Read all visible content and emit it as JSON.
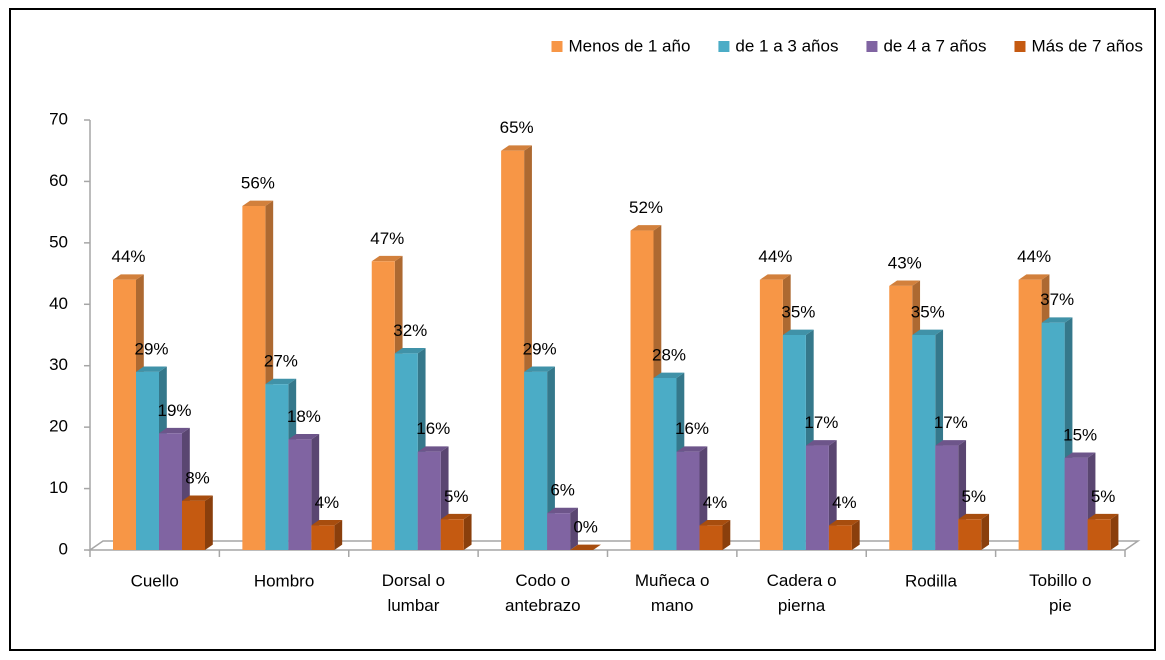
{
  "chart_data": {
    "type": "bar3d",
    "categories": [
      "Cuello",
      "Hombro",
      "Dorsal o lumbar",
      "Codo o antebrazo",
      "Muñeca o mano",
      "Cadera o pierna",
      "Rodilla",
      "Tobillo o pie"
    ],
    "series": [
      {
        "name": "Menos de 1 año",
        "color": "#f79646",
        "values": [
          44,
          56,
          47,
          65,
          52,
          44,
          43,
          44
        ],
        "value_labels": [
          "44%",
          "56%",
          "47%",
          "65%",
          "52%",
          "44%",
          "43%",
          "44%"
        ]
      },
      {
        "name": "de 1 a 3 años",
        "color": "#4bacc6",
        "values": [
          29,
          27,
          32,
          29,
          28,
          35,
          35,
          37
        ],
        "value_labels": [
          "29%",
          "27%",
          "32%",
          "29%",
          "28%",
          "35%",
          "35%",
          "37%"
        ]
      },
      {
        "name": "de 4 a 7 años",
        "color": "#8064a2",
        "values": [
          19,
          18,
          16,
          6,
          16,
          17,
          17,
          15
        ],
        "value_labels": [
          "19%",
          "18%",
          "16%",
          "6%",
          "16%",
          "17%",
          "17%",
          "15%"
        ]
      },
      {
        "name": "Más de 7 años",
        "color": "#c55a11",
        "values": [
          8,
          4,
          5,
          0,
          4,
          4,
          5,
          5
        ],
        "value_labels": [
          "8%",
          "4%",
          "5%",
          "0%",
          "4%",
          "4%",
          "5%",
          "5%"
        ]
      }
    ],
    "ylim": [
      0,
      70
    ],
    "yticks": [
      0,
      10,
      20,
      30,
      40,
      50,
      60,
      70
    ],
    "legend": "top-right"
  }
}
